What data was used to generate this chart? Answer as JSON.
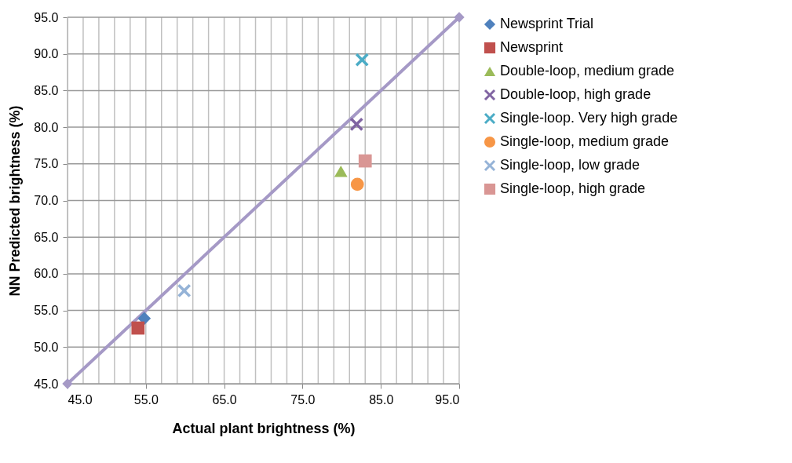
{
  "chart_data": {
    "type": "scatter",
    "xlabel": "Actual plant brightness (%)",
    "ylabel": "NN Predicted brightness (%)",
    "xlim": [
      45,
      95
    ],
    "ylim": [
      45,
      95
    ],
    "xticks": [
      {
        "value": 45,
        "label": "45.0"
      },
      {
        "value": 55,
        "label": "55.0"
      },
      {
        "value": 65,
        "label": "65.0"
      },
      {
        "value": 75,
        "label": "75.0"
      },
      {
        "value": 85,
        "label": "85.0"
      },
      {
        "value": 95,
        "label": "95.0"
      }
    ],
    "yticks": [
      {
        "value": 45,
        "label": "45.0"
      },
      {
        "value": 50,
        "label": "50.0"
      },
      {
        "value": 55,
        "label": "55.0"
      },
      {
        "value": 60,
        "label": "60.0"
      },
      {
        "value": 65,
        "label": "65.0"
      },
      {
        "value": 70,
        "label": "70.0"
      },
      {
        "value": 75,
        "label": "75.0"
      },
      {
        "value": 80,
        "label": "80.0"
      },
      {
        "value": 85,
        "label": "85.0"
      },
      {
        "value": 90,
        "label": "90.0"
      },
      {
        "value": 95,
        "label": "95.0"
      }
    ],
    "grid": true,
    "legend": "right",
    "series": [
      {
        "name": "Newsprint Trial",
        "color": "#4f81bd",
        "marker": "diamond",
        "x": [
          54.8
        ],
        "values": [
          53.9
        ]
      },
      {
        "name": "Newsprint",
        "color": "#c0504d",
        "marker": "square",
        "x": [
          54.0
        ],
        "values": [
          52.6
        ]
      },
      {
        "name": "Double-loop, medium grade",
        "color": "#9bbb59",
        "marker": "triangle",
        "x": [
          79.9
        ],
        "values": [
          74.0
        ]
      },
      {
        "name": "Double-loop, high grade",
        "color": "#8064a2",
        "marker": "cross",
        "x": [
          81.9
        ],
        "values": [
          80.4
        ]
      },
      {
        "name": "Single-loop. Very high grade",
        "color": "#4bacc6",
        "marker": "cross",
        "x": [
          82.6
        ],
        "values": [
          89.2
        ]
      },
      {
        "name": "Single-loop, medium grade",
        "color": "#f79646",
        "marker": "circle",
        "x": [
          82.0
        ],
        "values": [
          72.2
        ]
      },
      {
        "name": "Single-loop, low grade",
        "color": "#95b3d7",
        "marker": "cross",
        "x": [
          59.9
        ],
        "values": [
          57.7
        ]
      },
      {
        "name": "Single-loop, high grade",
        "color": "#d99694",
        "marker": "square",
        "x": [
          83.0
        ],
        "values": [
          75.4
        ]
      },
      {
        "type": "line",
        "color": "#a599c6",
        "marker": "diamond",
        "x": [
          45,
          95
        ],
        "values": [
          45,
          95
        ]
      }
    ]
  }
}
